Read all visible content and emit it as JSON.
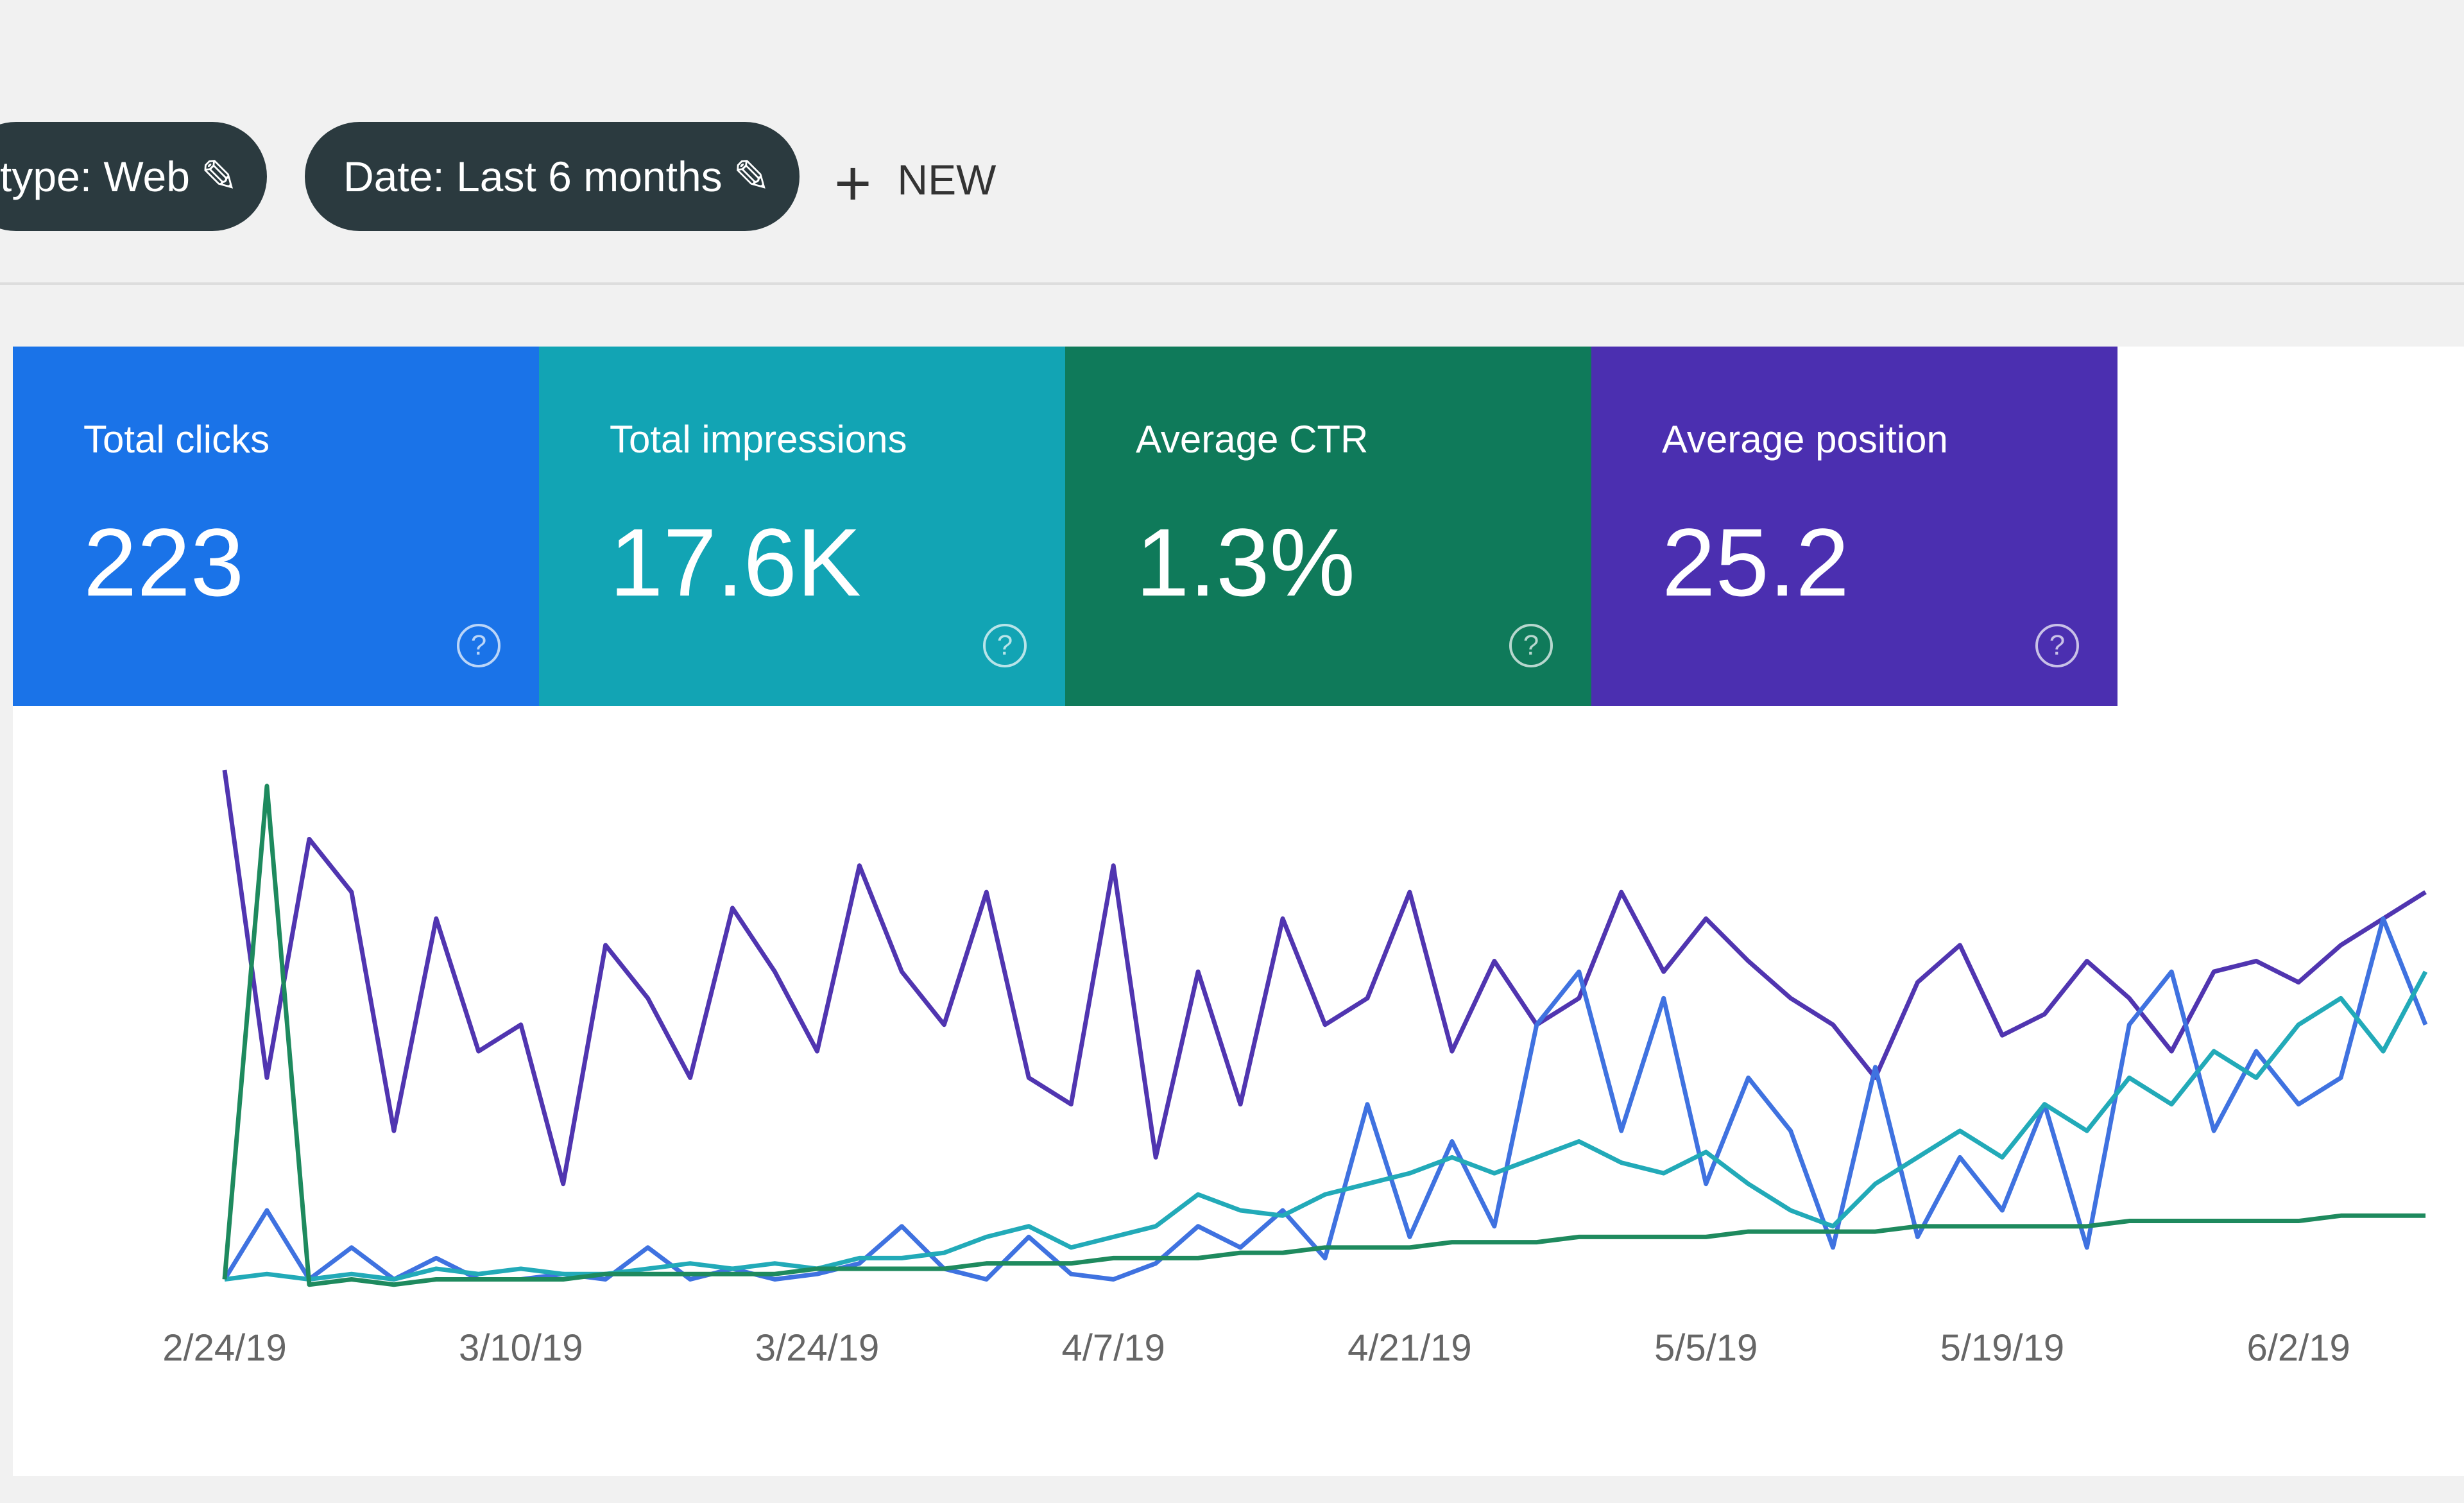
{
  "filters": [
    {
      "label": "type: Web"
    },
    {
      "label": "Date: Last 6 months"
    }
  ],
  "new_button": "NEW",
  "cards": [
    {
      "label": "Total clicks",
      "value": "223",
      "color": "#1a73e8"
    },
    {
      "label": "Total impressions",
      "value": "17.6K",
      "color": "#12a4b4"
    },
    {
      "label": "Average CTR",
      "value": "1.3%",
      "color": "#0f7a5a"
    },
    {
      "label": "Average position",
      "value": "25.2",
      "color": "#4b2fb0"
    }
  ],
  "chart_data": {
    "type": "line",
    "x": [
      "2/24/19",
      null,
      null,
      null,
      null,
      null,
      null,
      "3/10/19",
      null,
      null,
      null,
      null,
      null,
      null,
      "3/24/19",
      null,
      null,
      null,
      null,
      null,
      null,
      "4/7/19",
      null,
      null,
      null,
      null,
      null,
      null,
      "4/21/19",
      null,
      null,
      null,
      null,
      null,
      null,
      "5/5/19",
      null,
      null,
      null,
      null,
      null,
      null,
      "5/19/19",
      null,
      null,
      null,
      null,
      null,
      null,
      "6/2/19",
      null,
      null,
      null
    ],
    "series": [
      {
        "color": "#5035b0",
        "values": [
          98,
          40,
          85,
          75,
          30,
          70,
          45,
          50,
          20,
          65,
          55,
          40,
          72,
          60,
          45,
          80,
          60,
          50,
          75,
          40,
          35,
          80,
          25,
          60,
          35,
          70,
          50,
          55,
          75,
          45,
          62,
          50,
          55,
          75,
          60,
          70,
          62,
          55,
          50,
          40,
          58,
          65,
          48,
          52,
          62,
          55,
          45,
          60,
          62,
          58,
          65,
          70,
          75
        ]
      },
      {
        "color": "#3f72e0",
        "values": [
          2,
          15,
          2,
          8,
          2,
          6,
          2,
          2,
          3,
          2,
          8,
          2,
          4,
          2,
          3,
          5,
          12,
          4,
          2,
          10,
          3,
          2,
          5,
          12,
          8,
          15,
          6,
          35,
          10,
          28,
          12,
          50,
          60,
          30,
          55,
          20,
          40,
          30,
          8,
          42,
          10,
          25,
          15,
          35,
          8,
          50,
          60,
          30,
          45,
          35,
          40,
          70,
          50
        ]
      },
      {
        "color": "#22aab8",
        "values": [
          2,
          3,
          2,
          3,
          2,
          4,
          3,
          4,
          3,
          3,
          4,
          5,
          4,
          5,
          4,
          6,
          6,
          7,
          10,
          12,
          8,
          10,
          12,
          18,
          15,
          14,
          18,
          20,
          22,
          25,
          22,
          25,
          28,
          24,
          22,
          26,
          20,
          15,
          12,
          20,
          25,
          30,
          25,
          35,
          30,
          40,
          35,
          45,
          40,
          50,
          55,
          45,
          60
        ]
      },
      {
        "color": "#1e8a5e",
        "values": [
          2,
          95,
          1,
          2,
          1,
          2,
          2,
          2,
          2,
          3,
          3,
          3,
          3,
          3,
          4,
          4,
          4,
          4,
          5,
          5,
          5,
          6,
          6,
          6,
          7,
          7,
          8,
          8,
          8,
          9,
          9,
          9,
          10,
          10,
          10,
          10,
          11,
          11,
          11,
          11,
          12,
          12,
          12,
          12,
          12,
          13,
          13,
          13,
          13,
          13,
          14,
          14,
          14
        ]
      }
    ]
  }
}
